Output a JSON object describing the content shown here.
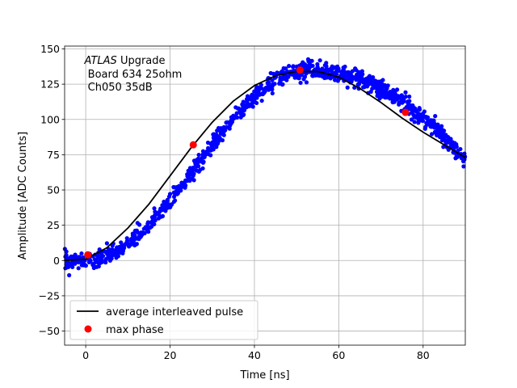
{
  "chart_data": {
    "type": "scatter",
    "xlabel": "Time [ns]",
    "ylabel": "Amplitude [ADC Counts]",
    "xlim": [
      -5,
      90
    ],
    "ylim": [
      -60,
      152
    ],
    "x_ticks": [
      0,
      20,
      40,
      60,
      80
    ],
    "y_ticks": [
      -50,
      -25,
      0,
      25,
      50,
      75,
      100,
      125,
      150
    ],
    "grid": true,
    "legend_placement": "lower-left",
    "annotation": {
      "line1_italic": "ATLAS",
      "line1_rest": " Upgrade",
      "line2": " Board 634 25ohm",
      "line3": " Ch050 35dB"
    },
    "series": [
      {
        "name": "",
        "kind": "scatter",
        "color": "#0000ff",
        "pulse_model": {
          "baseline": 0,
          "peak_x": 53,
          "peak_y": 135,
          "rise_start_x": 0,
          "noise_sigma": 3,
          "n_points": 1100
        }
      },
      {
        "name": "average interleaved pulse",
        "kind": "line",
        "color": "#000000",
        "x": [
          -5,
          0,
          5,
          10,
          15,
          20,
          25,
          30,
          35,
          40,
          45,
          50,
          55,
          60,
          65,
          70,
          75,
          80,
          85,
          90
        ],
        "y": [
          0,
          1,
          9,
          23,
          40,
          60,
          80,
          98,
          113,
          124,
          131,
          134,
          134,
          130,
          122,
          112,
          101,
          91,
          82,
          73
        ]
      },
      {
        "name": "max phase",
        "kind": "markers",
        "color": "#ff0000",
        "x": [
          0.5,
          25.5,
          50.8,
          75.8
        ],
        "y": [
          4,
          82,
          135,
          105
        ]
      }
    ]
  }
}
